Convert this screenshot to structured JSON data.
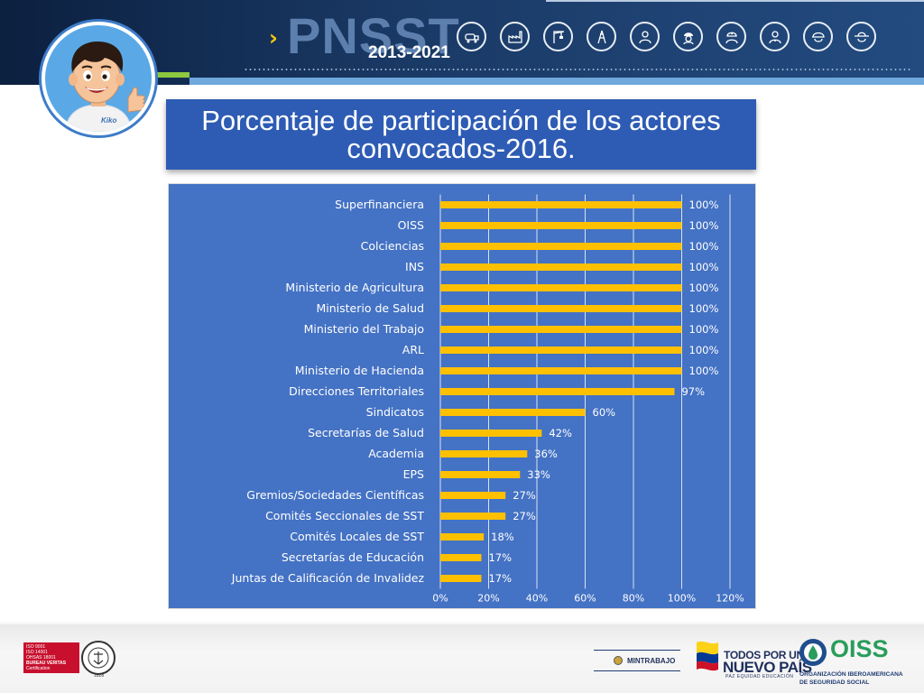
{
  "header": {
    "brand": "PNSST",
    "years": "2013-2021",
    "icons": [
      "tanker-truck-icon",
      "factory-icon",
      "construction-crane-icon",
      "oil-rig-icon",
      "office-worker-icon",
      "firefighter-icon",
      "miner-icon",
      "doctor-icon",
      "worker-helmet-icon",
      "farmer-icon"
    ],
    "colors": {
      "brand_text": "#5c7fae",
      "chevron": "#f6c915",
      "accent_green": "#8dc63f",
      "accent_blue": "#6fa8dc"
    }
  },
  "mascot": {
    "shirt_label": "Kiko"
  },
  "title": {
    "line1": "Porcentaje de participación de los actores",
    "line2": "convocados-2016."
  },
  "chart_data": {
    "type": "bar",
    "orientation": "horizontal",
    "categories": [
      "Superfinanciera",
      "OISS",
      "Colciencias",
      "INS",
      "Ministerio de Agricultura",
      "Ministerio de Salud",
      "Ministerio del Trabajo",
      "ARL",
      "Ministerio de Hacienda",
      "Direcciones Territoriales",
      "Sindicatos",
      "Secretarías de Salud",
      "Academia",
      "EPS",
      "Gremios/Sociedades Científicas",
      "Comités Seccionales de SST",
      "Comités Locales de SST",
      "Secretarías de Educación",
      "Juntas de Calificación de Invalidez"
    ],
    "values": [
      100,
      100,
      100,
      100,
      100,
      100,
      100,
      100,
      100,
      97,
      60,
      42,
      36,
      33,
      27,
      27,
      18,
      17,
      17
    ],
    "data_labels": [
      "100%",
      "100%",
      "100%",
      "100%",
      "100%",
      "100%",
      "100%",
      "100%",
      "100%",
      "97%",
      "60%",
      "42%",
      "36%",
      "33%",
      "27%",
      "27%",
      "18%",
      "17%",
      "17%"
    ],
    "x_ticks": [
      "0%",
      "20%",
      "40%",
      "60%",
      "80%",
      "100%",
      "120%"
    ],
    "xlim": [
      0,
      120
    ],
    "grid": true,
    "bar_color": "#ffc000",
    "background": "#4472c4"
  },
  "footer": {
    "bv_cert_lines": [
      "ISO 9001",
      "ISO 14001",
      "OHSAS 18001",
      "BUREAU VERITAS",
      "Certification"
    ],
    "bv_seal_year": "1828",
    "mintrabajo": "MINTRABAJO",
    "tpunp_line1": "TODOS POR UN",
    "tpunp_line2": "NUEVO PAÍS",
    "tpunp_line3": "PAZ  EQUIDAD  EDUCACIÓN",
    "oiss": "OISS",
    "oiss_sub1": "ORGANIZACIÓN IBEROAMERICANA",
    "oiss_sub2": "DE SEGURIDAD SOCIAL"
  }
}
